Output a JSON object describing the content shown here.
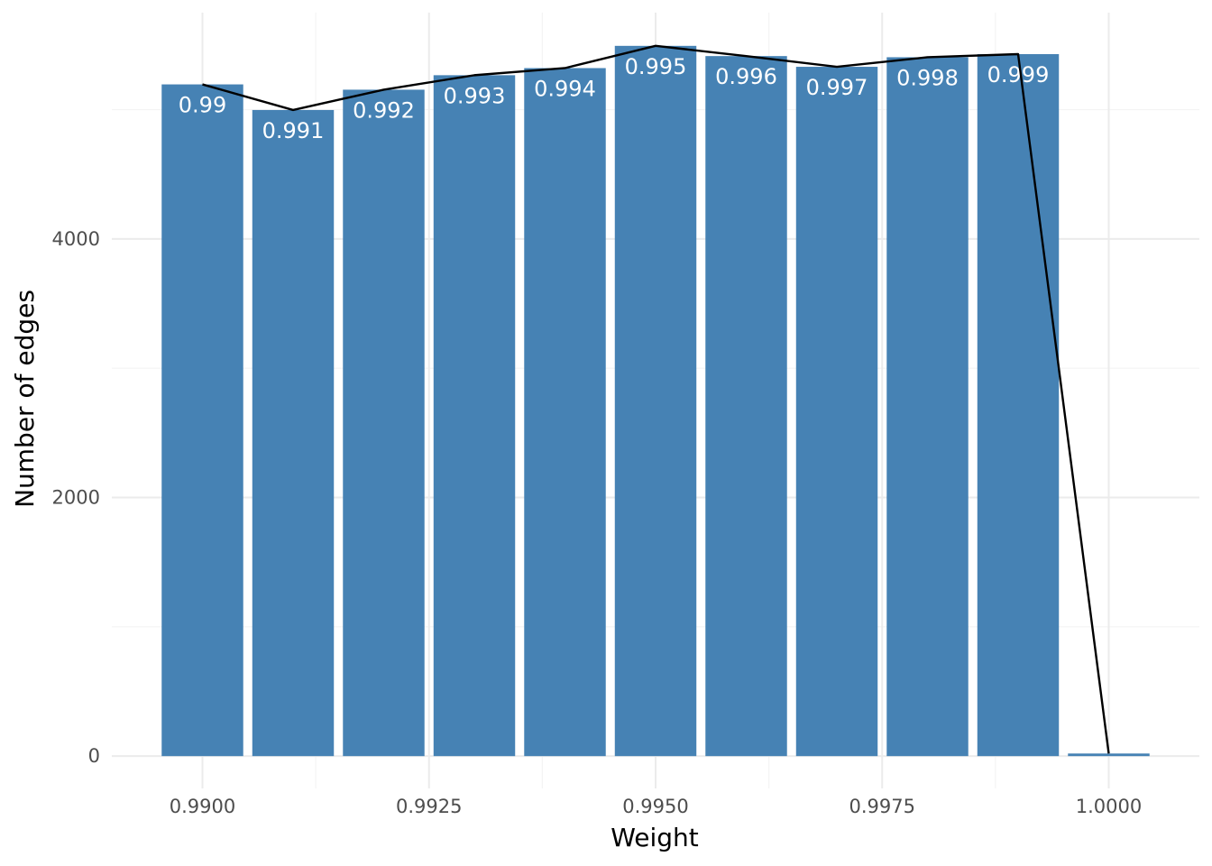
{
  "chart_data": {
    "type": "bar",
    "x": [
      0.99,
      0.991,
      0.992,
      0.993,
      0.994,
      0.995,
      0.996,
      0.997,
      0.998,
      0.999,
      1.0
    ],
    "values": [
      5195,
      4997,
      5154,
      5266,
      5321,
      5493,
      5414,
      5331,
      5405,
      5429,
      20
    ],
    "bar_labels": [
      "0.99",
      "0.991",
      "0.992",
      "0.993",
      "0.994",
      "0.995",
      "0.996",
      "0.997",
      "0.998",
      "0.999",
      ""
    ],
    "line_values": [
      5195,
      4997,
      5154,
      5266,
      5321,
      5493,
      5414,
      5331,
      5405,
      5429,
      20
    ],
    "xlabel": "Weight",
    "ylabel": "Number of edges",
    "xlim": [
      0.989,
      1.001
    ],
    "ylim": [
      -250,
      5750
    ],
    "x_ticks": [
      0.99,
      0.9925,
      0.995,
      0.9975,
      1.0
    ],
    "x_tick_labels": [
      "0.9900",
      "0.9925",
      "0.9950",
      "0.9975",
      "1.0000"
    ],
    "y_ticks": [
      0,
      2000,
      4000
    ],
    "y_tick_labels": [
      "0",
      "2000",
      "4000"
    ],
    "grid": true,
    "legend": "none",
    "bar_color": "#4682B4",
    "line_color": "#000000"
  }
}
